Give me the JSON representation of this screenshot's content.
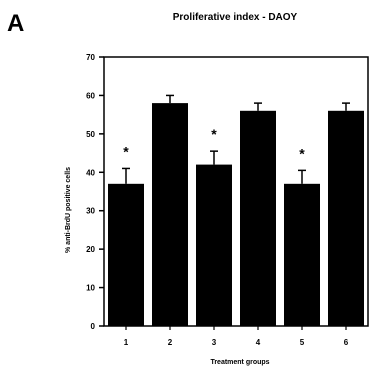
{
  "panel_letter": "A",
  "chart_data": {
    "type": "bar",
    "title": "Proliferative index - DAOY",
    "xlabel": "Treatment groups",
    "ylabel": "% anti-BrdU positive cells",
    "categories": [
      "1",
      "2",
      "3",
      "4",
      "5",
      "6"
    ],
    "values": [
      37,
      58,
      42,
      56,
      37,
      56
    ],
    "errors": [
      4,
      2,
      3.5,
      2,
      3.5,
      2
    ],
    "significance": [
      "*",
      "",
      "*",
      "",
      "*",
      ""
    ],
    "ylim": [
      0,
      70
    ],
    "yticks": [
      0,
      10,
      20,
      30,
      40,
      50,
      60,
      70
    ],
    "grid": false,
    "bar_color": "#000000"
  }
}
